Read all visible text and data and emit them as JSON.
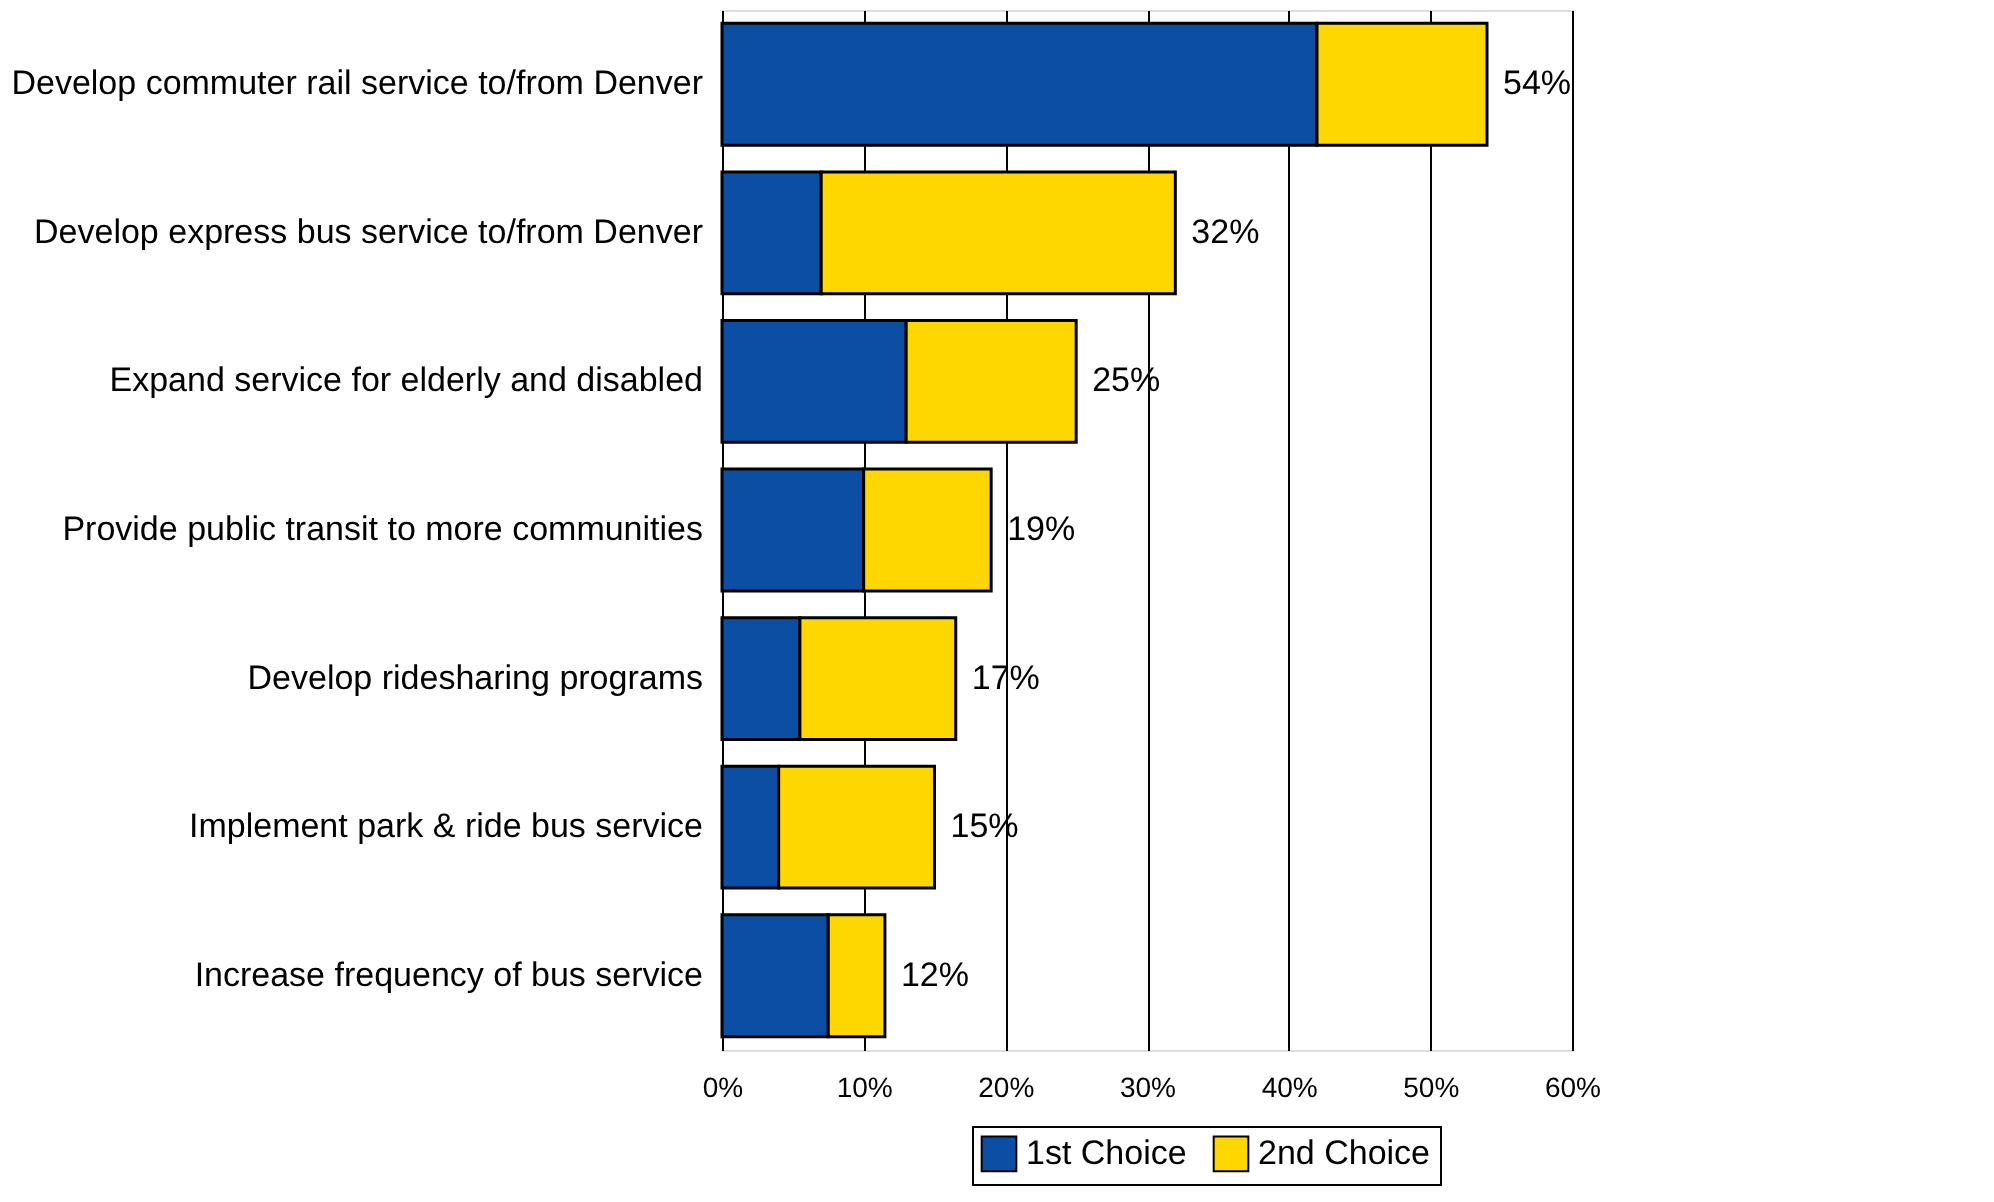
{
  "chart_data": {
    "type": "bar",
    "orientation": "horizontal",
    "stacked": true,
    "categories": [
      "Develop commuter rail service to/from Denver",
      "Develop express bus service to/from Denver",
      "Expand service for elderly and disabled",
      "Provide public transit to more communities",
      "Develop ridesharing programs",
      "Implement park & ride bus service",
      "Increase frequency of bus service"
    ],
    "series": [
      {
        "name": "1st Choice",
        "color": "#0a4fa3",
        "values": [
          42,
          7,
          13,
          10,
          5.5,
          4,
          7.5
        ]
      },
      {
        "name": "2nd Choice",
        "color": "#ffd700",
        "values": [
          12,
          25,
          12,
          9,
          11,
          11,
          4
        ]
      }
    ],
    "totals": [
      "54%",
      "32%",
      "25%",
      "19%",
      "17%",
      "15%",
      "12%"
    ],
    "xlim": [
      0,
      60
    ],
    "xticks": [
      {
        "value": 0,
        "label": "0%"
      },
      {
        "value": 10,
        "label": "10%"
      },
      {
        "value": 20,
        "label": "20%"
      },
      {
        "value": 30,
        "label": "30%"
      },
      {
        "value": 40,
        "label": "40%"
      },
      {
        "value": 50,
        "label": "50%"
      },
      {
        "value": 60,
        "label": "60%"
      }
    ],
    "grid": "x",
    "legend": "bottom right"
  }
}
